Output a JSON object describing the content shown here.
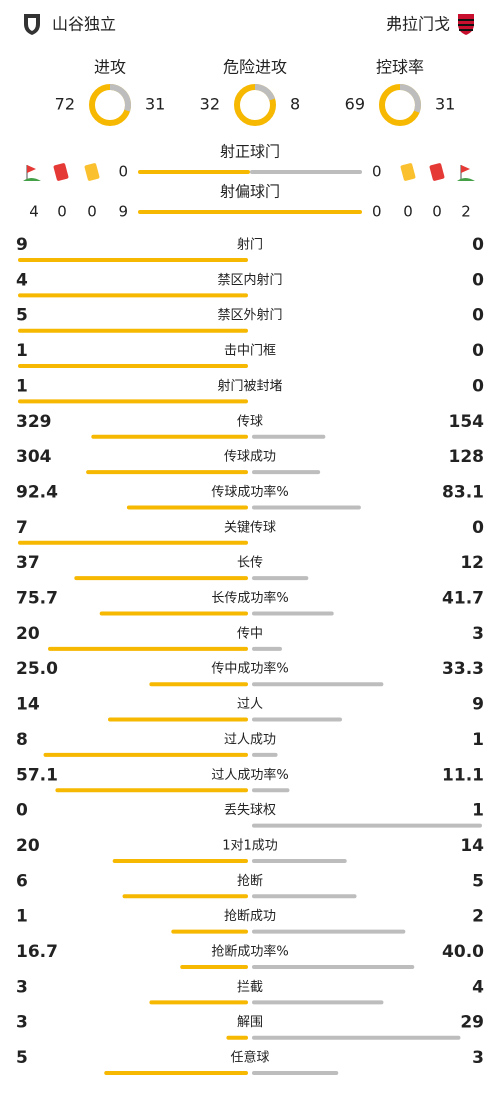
{
  "header": {
    "home": "山谷独立",
    "away": "弗拉门戈"
  },
  "rings": [
    {
      "label": "进攻",
      "home": 72,
      "away": 31
    },
    {
      "label": "危险进攻",
      "home": 32,
      "away": 8
    },
    {
      "label": "控球率",
      "home": 69,
      "away": 31
    }
  ],
  "shots_on": {
    "label": "射正球门",
    "home": 0,
    "away": 0
  },
  "shots_off": {
    "label": "射偏球门",
    "home": 9,
    "away": 0
  },
  "cards": {
    "home": {
      "corners": 4,
      "red": 0,
      "yellow": 0
    },
    "away": {
      "corners": 2,
      "red": 0,
      "yellow": 0
    }
  },
  "stats": [
    {
      "label": "射门",
      "home": 9,
      "away": 0
    },
    {
      "label": "禁区内射门",
      "home": 4,
      "away": 0
    },
    {
      "label": "禁区外射门",
      "home": 5,
      "away": 0
    },
    {
      "label": "击中门框",
      "home": 1,
      "away": 0
    },
    {
      "label": "射门被封堵",
      "home": 1,
      "away": 0
    },
    {
      "label": "传球",
      "home": 329,
      "away": 154
    },
    {
      "label": "传球成功",
      "home": 304,
      "away": 128
    },
    {
      "label": "传球成功率%",
      "home": 92.4,
      "away": 83.1
    },
    {
      "label": "关键传球",
      "home": 7,
      "away": 0
    },
    {
      "label": "长传",
      "home": 37,
      "away": 12
    },
    {
      "label": "长传成功率%",
      "home": 75.7,
      "away": 41.7
    },
    {
      "label": "传中",
      "home": 20,
      "away": 3
    },
    {
      "label": "传中成功率%",
      "home": 25,
      "home_label": "25.0",
      "away": 33.3
    },
    {
      "label": "过人",
      "home": 14,
      "away": 9
    },
    {
      "label": "过人成功",
      "home": 8,
      "away": 1
    },
    {
      "label": "过人成功率%",
      "home": 57.1,
      "away": 11.1
    },
    {
      "label": "丢失球权",
      "home": 0,
      "away": 1
    },
    {
      "label": "1对1成功",
      "home": 20,
      "away": 14
    },
    {
      "label": "抢断",
      "home": 6,
      "away": 5
    },
    {
      "label": "抢断成功",
      "home": 1,
      "away": 2
    },
    {
      "label": "抢断成功率%",
      "home": 16.7,
      "away": 40,
      "away_label": "40.0"
    },
    {
      "label": "拦截",
      "home": 3,
      "away": 4
    },
    {
      "label": "解围",
      "home": 3,
      "away": 29
    },
    {
      "label": "任意球",
      "home": 5,
      "away": 3
    }
  ]
}
